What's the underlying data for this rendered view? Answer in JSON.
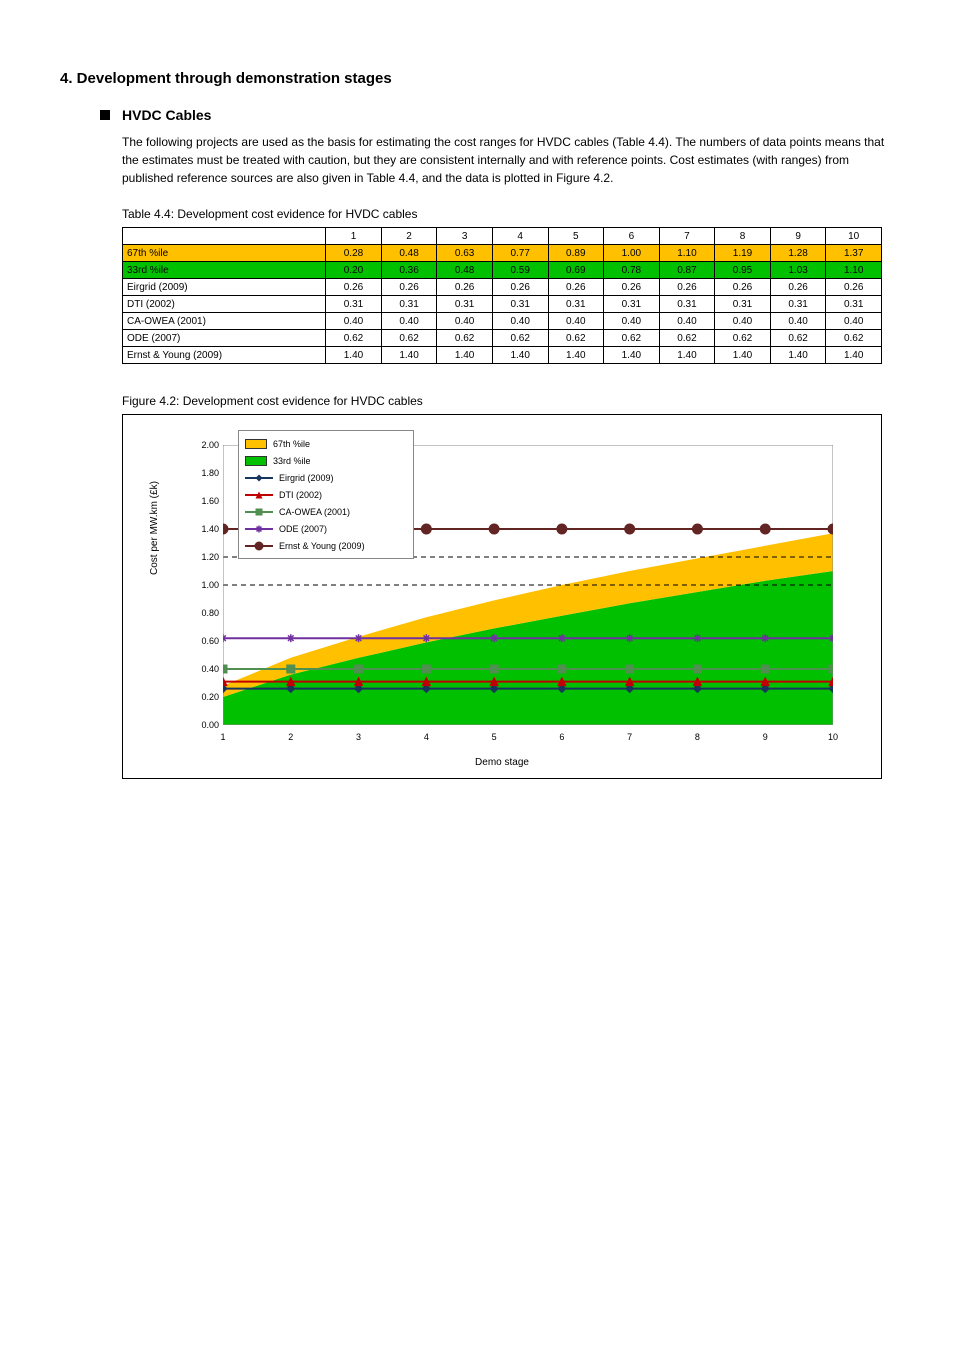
{
  "section_title": "4.  Development through demonstration stages",
  "bullet_heading": "HVDC Cables",
  "intro_para": "The following projects are used as the basis for estimating the cost ranges for HVDC cables (Table 4.4).  The numbers of data points means that the estimates must be treated with caution, but they are consistent internally and with reference points.  Cost estimates (with ranges) from published reference sources are also given in Table 4.4, and the data is plotted in Figure 4.2.",
  "table_caption": "Table 4.4: Development cost evidence for HVDC cables",
  "chart_caption": "Figure 4.2: Development cost evidence for HVDC cables",
  "table": {
    "headers": [
      "",
      "1",
      "2",
      "3",
      "4",
      "5",
      "6",
      "7",
      "8",
      "9",
      "10"
    ],
    "rows": [
      {
        "class": "row-orange",
        "cells": [
          "67th %ile",
          "0.28",
          "0.48",
          "0.63",
          "0.77",
          "0.89",
          "1.00",
          "1.10",
          "1.19",
          "1.28",
          "1.37"
        ]
      },
      {
        "class": "row-green",
        "cells": [
          "33rd %ile",
          "0.20",
          "0.36",
          "0.48",
          "0.59",
          "0.69",
          "0.78",
          "0.87",
          "0.95",
          "1.03",
          "1.10"
        ]
      },
      {
        "class": "",
        "cells": [
          "Eirgrid (2009)",
          "0.26",
          "0.26",
          "0.26",
          "0.26",
          "0.26",
          "0.26",
          "0.26",
          "0.26",
          "0.26",
          "0.26"
        ]
      },
      {
        "class": "",
        "cells": [
          "DTI (2002)",
          "0.31",
          "0.31",
          "0.31",
          "0.31",
          "0.31",
          "0.31",
          "0.31",
          "0.31",
          "0.31",
          "0.31"
        ]
      },
      {
        "class": "",
        "cells": [
          "CA-OWEA (2001)",
          "0.40",
          "0.40",
          "0.40",
          "0.40",
          "0.40",
          "0.40",
          "0.40",
          "0.40",
          "0.40",
          "0.40"
        ]
      },
      {
        "class": "",
        "cells": [
          "ODE (2007)",
          "0.62",
          "0.62",
          "0.62",
          "0.62",
          "0.62",
          "0.62",
          "0.62",
          "0.62",
          "0.62",
          "0.62"
        ]
      },
      {
        "class": "",
        "cells": [
          "Ernst & Young (2009)",
          "1.40",
          "1.40",
          "1.40",
          "1.40",
          "1.40",
          "1.40",
          "1.40",
          "1.40",
          "1.40",
          "1.40"
        ]
      }
    ]
  },
  "chart": {
    "ylabel": "Cost per MW.km (£k)",
    "xlabel": "Demo stage",
    "ylim": [
      0,
      2.0
    ],
    "xlim": [
      1,
      10
    ],
    "yticks": [
      "0.00",
      "0.20",
      "0.40",
      "0.60",
      "0.80",
      "1.00",
      "1.20",
      "1.40",
      "1.60",
      "1.80",
      "2.00"
    ],
    "xticks": [
      "1",
      "2",
      "3",
      "4",
      "5",
      "6",
      "7",
      "8",
      "9",
      "10"
    ],
    "band_upper": [
      0.28,
      0.48,
      0.63,
      0.77,
      0.89,
      1.0,
      1.1,
      1.19,
      1.28,
      1.37
    ],
    "band_lower": [
      0.2,
      0.36,
      0.48,
      0.59,
      0.69,
      0.78,
      0.87,
      0.95,
      1.03,
      1.1
    ],
    "band_upper_color": "#ffc000",
    "band_lower_color": "#00c000",
    "series": [
      {
        "name": "Eirgrid (2009)",
        "value": 0.26,
        "color": "#17365d",
        "marker": "diamond"
      },
      {
        "name": "DTI (2002)",
        "value": 0.31,
        "color": "#c00000",
        "marker": "triangle"
      },
      {
        "name": "CA-OWEA (2001)",
        "value": 0.4,
        "color": "#4f8f4f",
        "marker": "square"
      },
      {
        "name": "ODE (2007)",
        "value": 0.62,
        "color": "#7030a0",
        "marker": "star"
      },
      {
        "name": "Ernst & Young (2009)",
        "value": 1.4,
        "color": "#632523",
        "marker": "circle"
      }
    ],
    "dashed_refs": [
      1.4,
      1.2,
      1.0,
      0.62
    ]
  }
}
